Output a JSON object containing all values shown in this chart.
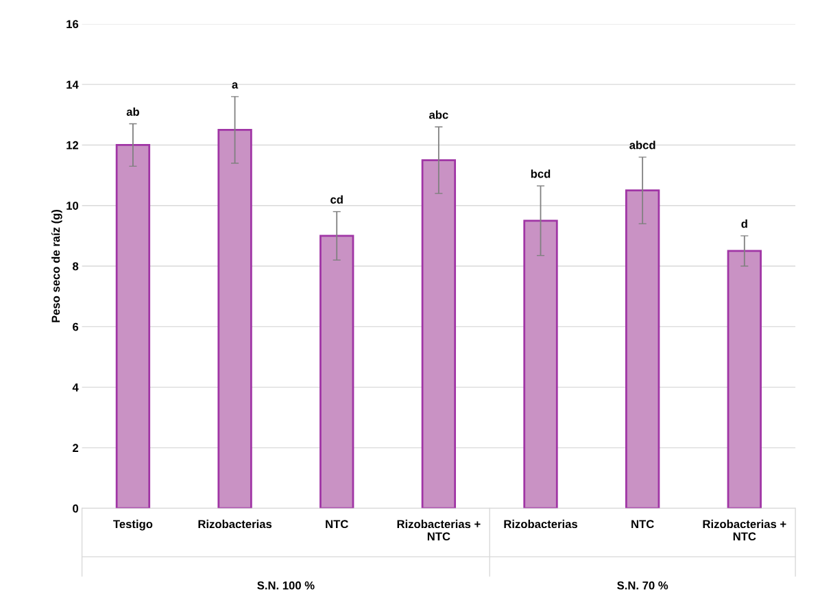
{
  "chart_data": {
    "type": "bar",
    "ylabel": "Peso seco de raíz (g)",
    "categories": [
      "Testigo",
      "Rizobacterias",
      "NTC",
      "Rizobacterias + NTC",
      "Rizobacterias",
      "NTC",
      "Rizobacterias + NTC"
    ],
    "values": [
      12.0,
      12.5,
      9.0,
      11.5,
      9.5,
      10.5,
      8.5
    ],
    "errors": [
      0.7,
      1.1,
      0.8,
      1.1,
      1.15,
      1.1,
      0.5
    ],
    "color": "#c992c4",
    "ylim": [
      0,
      16
    ],
    "yticks": [
      0,
      2,
      4,
      6,
      8,
      10,
      12,
      14,
      16
    ],
    "grid": "y",
    "annotations": [
      "ab",
      "a",
      "cd",
      "abc",
      "bcd",
      "abcd",
      "d",
      "S.N. 100 %",
      "S.N. 70 %"
    ]
  }
}
